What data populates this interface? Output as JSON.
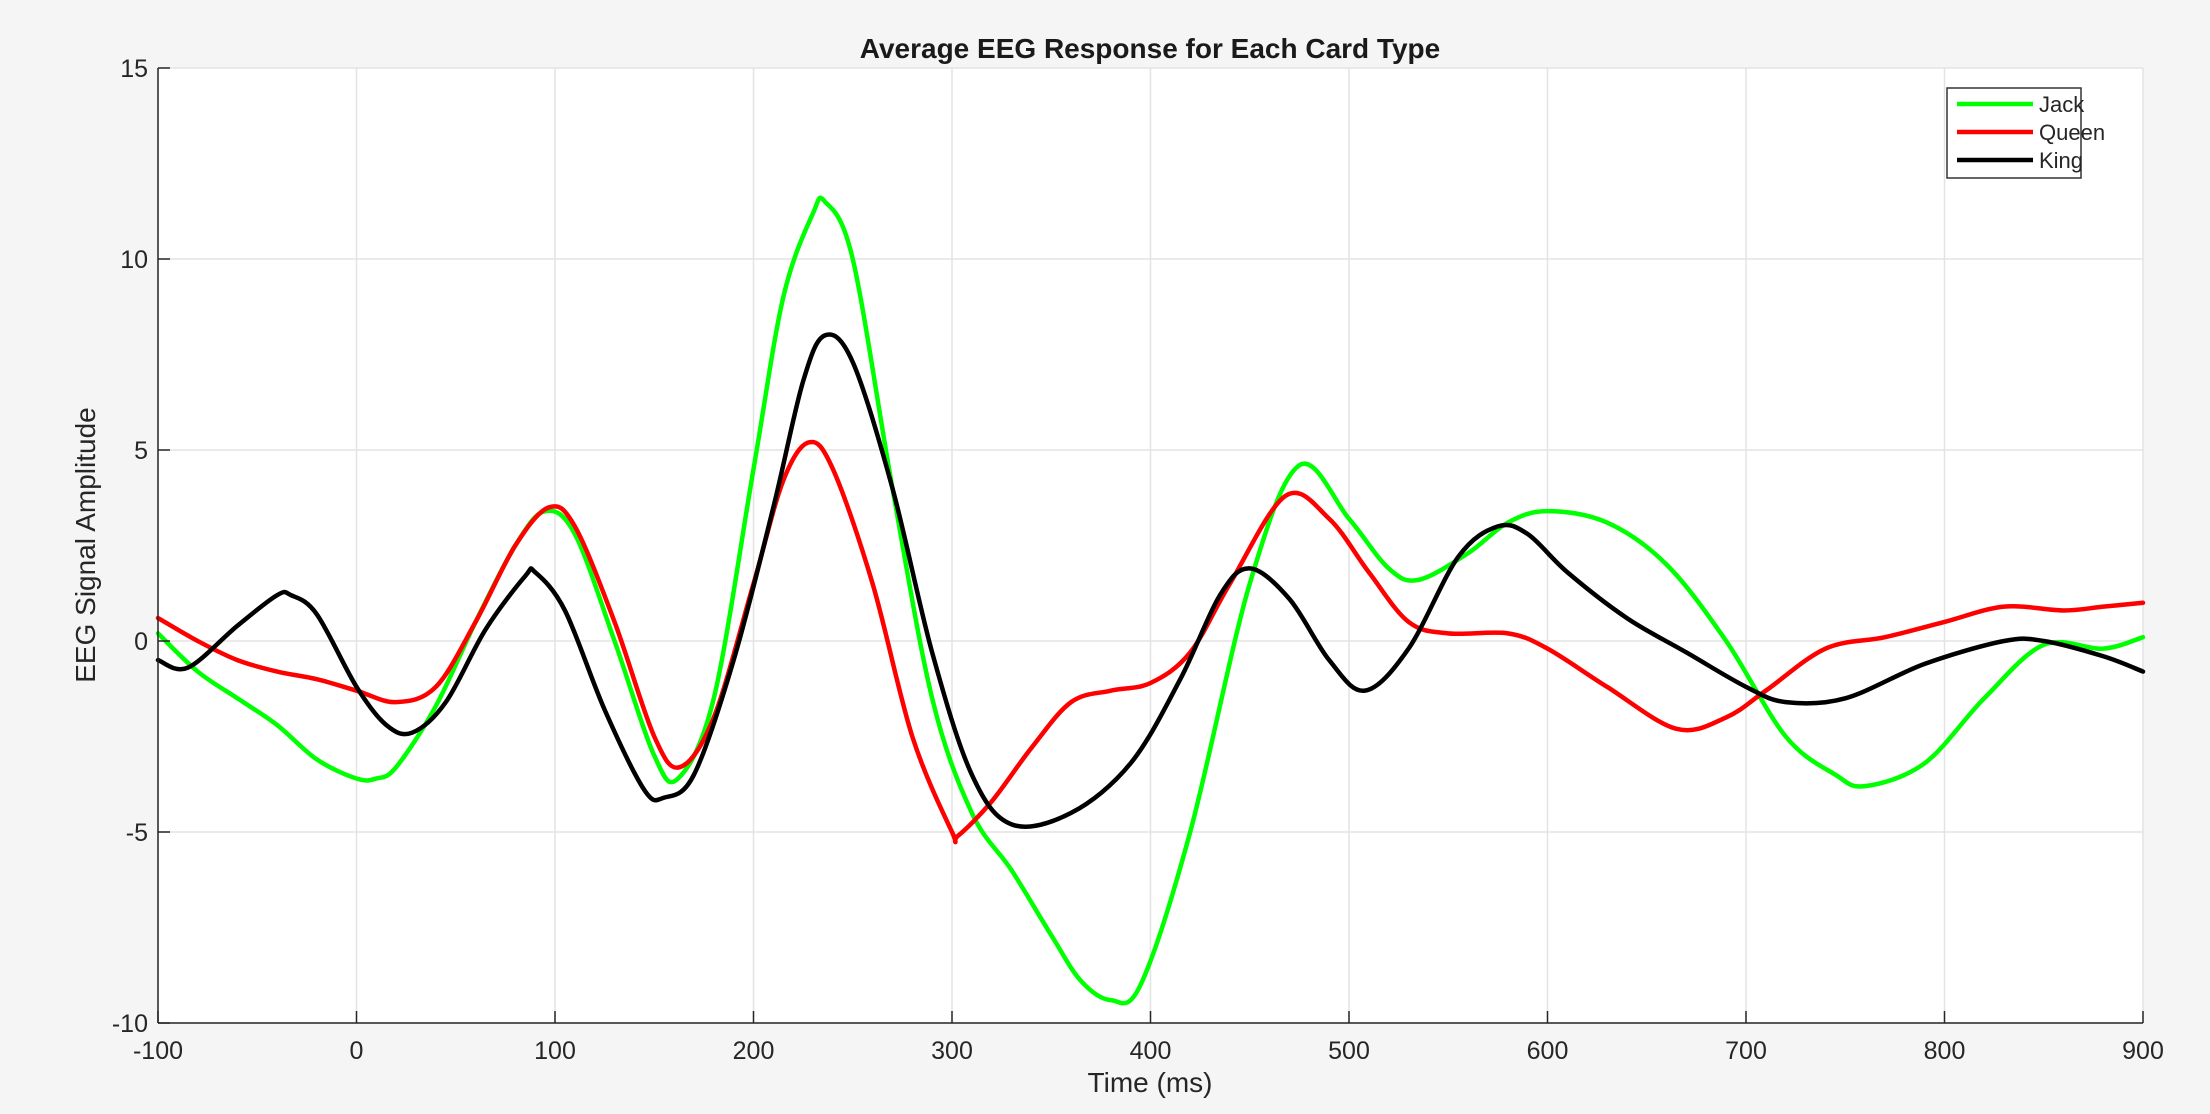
{
  "chart_data": {
    "type": "line",
    "title": "Average EEG Response for Each Card Type",
    "xlabel": "Time (ms)",
    "ylabel": "EEG Signal Amplitude",
    "xlim": [
      -100,
      900
    ],
    "ylim": [
      -10,
      15
    ],
    "xticks": [
      -100,
      0,
      100,
      200,
      300,
      400,
      500,
      600,
      700,
      800,
      900
    ],
    "yticks": [
      -10,
      -5,
      0,
      5,
      10,
      15
    ],
    "grid": true,
    "legend_position": "top-right",
    "series": [
      {
        "name": "Jack",
        "color": "#00ff00",
        "x": [
          -100,
          -80,
          -60,
          -40,
          -20,
          0,
          10,
          20,
          40,
          60,
          80,
          95,
          110,
          130,
          150,
          162,
          180,
          200,
          215,
          230,
          236,
          250,
          270,
          290,
          310,
          330,
          350,
          365,
          380,
          395,
          420,
          450,
          475,
          500,
          520,
          535,
          560,
          580,
          600,
          630,
          660,
          690,
          720,
          745,
          760,
          790,
          820,
          850,
          880,
          900
        ],
        "y": [
          0.2,
          -0.8,
          -1.5,
          -2.2,
          -3.1,
          -3.6,
          -3.6,
          -3.3,
          -1.7,
          0.5,
          2.5,
          3.4,
          2.8,
          0.0,
          -3.0,
          -3.6,
          -1.5,
          4.5,
          9.0,
          11.2,
          11.5,
          10.0,
          4.0,
          -1.5,
          -4.5,
          -6.0,
          -7.7,
          -8.9,
          -9.4,
          -9.0,
          -5.0,
          1.5,
          4.6,
          3.2,
          1.9,
          1.6,
          2.3,
          3.1,
          3.4,
          3.1,
          2.0,
          0.0,
          -2.5,
          -3.5,
          -3.8,
          -3.2,
          -1.5,
          -0.1,
          -0.2,
          0.1
        ]
      },
      {
        "name": "Queen",
        "color": "#ff0000",
        "x": [
          -100,
          -80,
          -60,
          -40,
          -20,
          0,
          20,
          40,
          60,
          80,
          97,
          110,
          130,
          150,
          163,
          180,
          200,
          215,
          228,
          240,
          260,
          280,
          300,
          303,
          320,
          340,
          360,
          380,
          400,
          420,
          440,
          468,
          490,
          510,
          530,
          550,
          580,
          600,
          630,
          665,
          690,
          710,
          740,
          770,
          800,
          830,
          860,
          880,
          900
        ],
        "y": [
          0.6,
          0.0,
          -0.5,
          -0.8,
          -1.0,
          -1.3,
          -1.6,
          -1.2,
          0.5,
          2.5,
          3.5,
          3.0,
          0.5,
          -2.5,
          -3.3,
          -2.0,
          1.5,
          4.2,
          5.2,
          4.5,
          1.5,
          -2.5,
          -5.0,
          -5.1,
          -4.2,
          -2.8,
          -1.6,
          -1.3,
          -1.1,
          -0.3,
          1.5,
          3.8,
          3.2,
          1.8,
          0.5,
          0.2,
          0.2,
          -0.2,
          -1.2,
          -2.3,
          -2.0,
          -1.3,
          -0.2,
          0.1,
          0.5,
          0.9,
          0.8,
          0.9,
          1.0
        ]
      },
      {
        "name": "King",
        "color": "#000000",
        "x": [
          -100,
          -85,
          -60,
          -40,
          -33,
          -20,
          0,
          15,
          28,
          45,
          65,
          85,
          90,
          105,
          125,
          145,
          155,
          170,
          190,
          210,
          225,
          236,
          250,
          270,
          290,
          310,
          330,
          360,
          390,
          415,
          435,
          450,
          470,
          490,
          508,
          530,
          555,
          575,
          590,
          610,
          640,
          670,
          700,
          720,
          750,
          790,
          830,
          850,
          880,
          900
        ],
        "y": [
          -0.5,
          -0.7,
          0.4,
          1.2,
          1.2,
          0.7,
          -1.2,
          -2.2,
          -2.4,
          -1.6,
          0.3,
          1.7,
          1.8,
          0.8,
          -1.8,
          -3.9,
          -4.1,
          -3.5,
          -0.5,
          3.5,
          6.8,
          8.0,
          7.3,
          4.0,
          -0.3,
          -3.5,
          -4.8,
          -4.5,
          -3.2,
          -1.0,
          1.2,
          1.9,
          1.1,
          -0.5,
          -1.3,
          -0.2,
          2.2,
          3.0,
          2.8,
          1.8,
          0.6,
          -0.3,
          -1.2,
          -1.6,
          -1.5,
          -0.6,
          0.0,
          0.0,
          -0.4,
          -0.8
        ]
      }
    ]
  }
}
